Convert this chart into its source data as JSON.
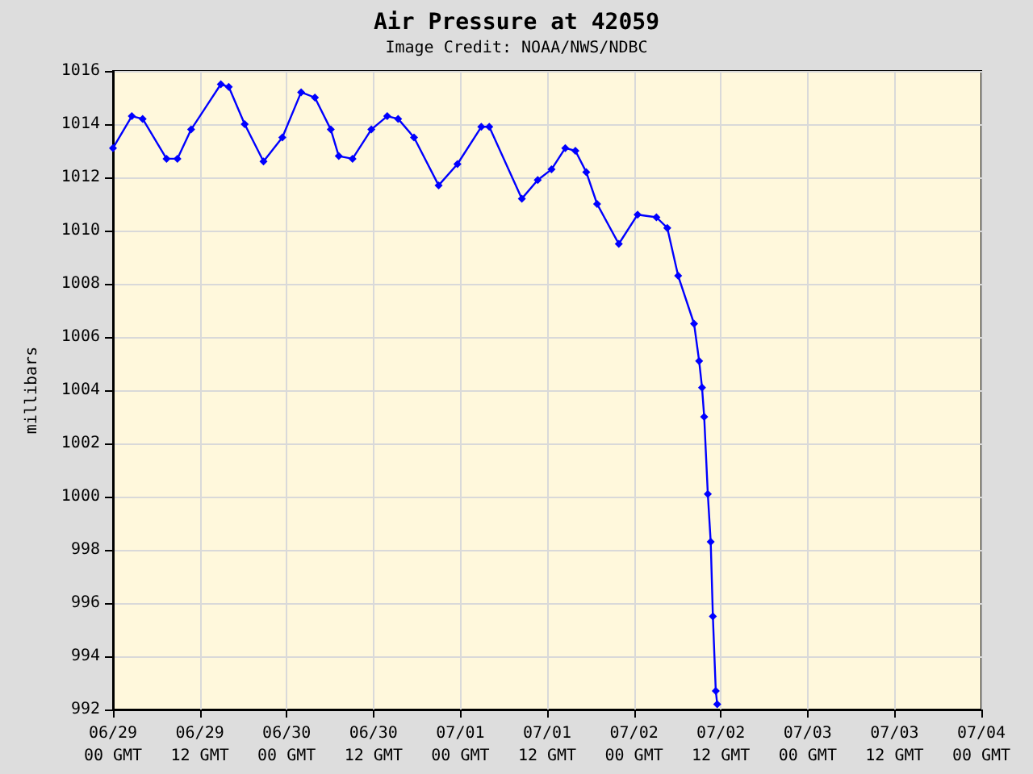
{
  "chart_data": {
    "type": "line",
    "title": "Air Pressure at 42059",
    "subtitle": "Image Credit: NOAA/NWS/NDBC",
    "ylabel": "millibars",
    "x": [
      "--06-29T00:00",
      "--06-29T02:36",
      "--06-29T04:06",
      "--06-29T07:24",
      "--06-29T08:54",
      "--06-29T10:48",
      "--06-29T14:54",
      "--06-29T16:00",
      "--06-29T18:12",
      "--06-29T20:48",
      "--06-29T23:24",
      "--06-30T02:00",
      "--06-30T03:54",
      "--06-30T06:06",
      "--06-30T07:12",
      "--06-30T09:06",
      "--06-30T11:42",
      "--06-30T13:54",
      "--06-30T15:24",
      "--06-30T17:36",
      "--06-30T21:00",
      "--06-30T23:36",
      "--07-01T02:54",
      "--07-01T04:00",
      "--07-01T08:30",
      "--07-01T10:42",
      "--07-01T12:36",
      "--07-01T14:30",
      "--07-01T15:54",
      "--07-01T17:24",
      "--07-01T18:54",
      "--07-01T21:54",
      "--07-02T00:30",
      "--07-02T03:06",
      "--07-02T04:36",
      "--07-02T06:06",
      "--07-02T08:18",
      "--07-02T09:00",
      "--07-02T09:24",
      "--07-02T09:42",
      "--07-02T10:12",
      "--07-02T10:36",
      "--07-02T10:54",
      "--07-02T11:18",
      "--07-02T11:30"
    ],
    "series": [
      {
        "color": "#0000ff",
        "values": [
          1013.1,
          1014.3,
          1014.2,
          1012.7,
          1012.7,
          1013.8,
          1015.5,
          1015.4,
          1014.0,
          1012.6,
          1013.5,
          1015.2,
          1015.0,
          1013.8,
          1012.8,
          1012.7,
          1013.8,
          1014.3,
          1014.2,
          1013.5,
          1011.7,
          1012.5,
          1013.9,
          1013.9,
          1011.2,
          1011.9,
          1012.3,
          1013.1,
          1013.0,
          1012.2,
          1011.0,
          1009.5,
          1010.6,
          1010.5,
          1010.1,
          1008.3,
          1006.5,
          1005.1,
          1004.1,
          1003.0,
          1000.1,
          998.3,
          995.5,
          992.7,
          992.2
        ]
      }
    ],
    "xlim": [
      "--06-29T00:00",
      "--07-04T00:00"
    ],
    "xticks": [
      {
        "value": "--06-29T00:00",
        "label": "06/29\n00 GMT"
      },
      {
        "value": "--06-29T12:00",
        "label": "06/29\n12 GMT"
      },
      {
        "value": "--06-30T00:00",
        "label": "06/30\n00 GMT"
      },
      {
        "value": "--06-30T12:00",
        "label": "06/30\n12 GMT"
      },
      {
        "value": "--07-01T00:00",
        "label": "07/01\n00 GMT"
      },
      {
        "value": "--07-01T12:00",
        "label": "07/01\n12 GMT"
      },
      {
        "value": "--07-02T00:00",
        "label": "07/02\n00 GMT"
      },
      {
        "value": "--07-02T12:00",
        "label": "07/02\n12 GMT"
      },
      {
        "value": "--07-03T00:00",
        "label": "07/03\n00 GMT"
      },
      {
        "value": "--07-03T12:00",
        "label": "07/03\n12 GMT"
      },
      {
        "value": "--07-04T00:00",
        "label": "07/04\n00 GMT"
      }
    ],
    "ylim": [
      992,
      1016
    ],
    "yticks": [
      992,
      994,
      996,
      998,
      1000,
      1002,
      1004,
      1006,
      1008,
      1010,
      1012,
      1014,
      1016
    ],
    "grid": true,
    "marker": "diamond",
    "line_style": "solid"
  }
}
